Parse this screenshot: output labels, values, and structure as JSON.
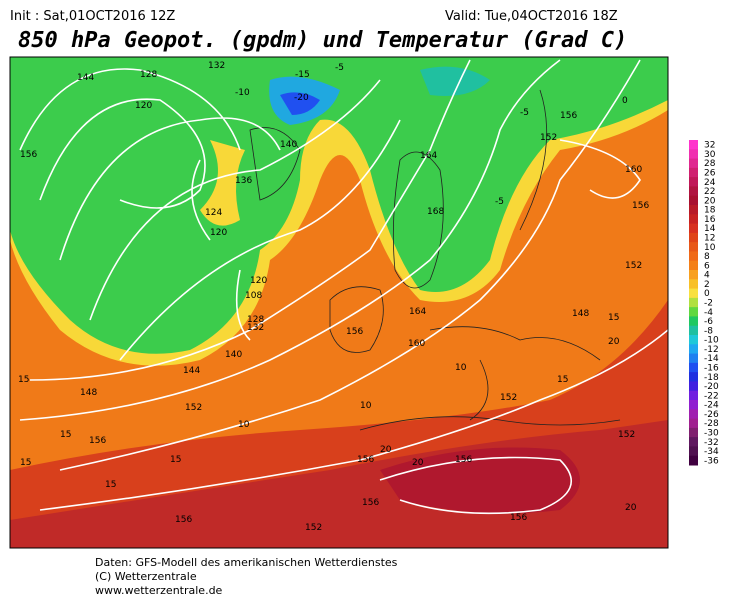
{
  "header": {
    "init": "Init : Sat,01OCT2016 12Z",
    "valid": "Valid: Tue,04OCT2016 18Z",
    "title": "850 hPa Geopot. (gpdm) und Temperatur (Grad C)"
  },
  "colorbar": {
    "labels": [
      32,
      30,
      28,
      26,
      24,
      22,
      20,
      18,
      16,
      14,
      12,
      10,
      8,
      6,
      4,
      2,
      0,
      -2,
      -4,
      -6,
      -8,
      -10,
      -12,
      -14,
      -16,
      -18,
      -20,
      -22,
      -24,
      -26,
      -28,
      -30,
      -32,
      -34,
      -36
    ],
    "colors": [
      "#ff33cc",
      "#f030b0",
      "#e02890",
      "#d02070",
      "#c01858",
      "#b01440",
      "#a81030",
      "#b81a28",
      "#c82222",
      "#d83020",
      "#e04418",
      "#e85818",
      "#f06a18",
      "#f48018",
      "#f8a020",
      "#f8c028",
      "#f8e040",
      "#b0e040",
      "#60d840",
      "#20c860",
      "#20c0a0",
      "#20c8d8",
      "#20a8f0",
      "#2080f0",
      "#2050f0",
      "#2030e0",
      "#4020e0",
      "#7020e0",
      "#9020d0",
      "#a020b0",
      "#a02090",
      "#802070",
      "#601860",
      "#501050",
      "#400040"
    ]
  },
  "map_labels": [
    "144",
    "128",
    "120",
    "132",
    "-10",
    "-15",
    "-20",
    "-5",
    "-5",
    "156",
    "152",
    "160",
    "156",
    "156",
    "140",
    "136",
    "124",
    "120",
    "164",
    "168",
    "-5",
    "0",
    "120",
    "108",
    "128",
    "132",
    "140",
    "144",
    "148",
    "152",
    "156",
    "164",
    "160",
    "148",
    "152",
    "20",
    "15",
    "152",
    "10",
    "10",
    "15",
    "156",
    "15",
    "15",
    "156",
    "156",
    "20",
    "20",
    "156",
    "156",
    "156",
    "152",
    "20",
    "152",
    "15",
    "15",
    "10",
    "15"
  ],
  "footer": [
    "Daten: GFS-Modell des amerikanischen Wetterdienstes",
    "(C) Wetterzentrale",
    "www.wetterzentrale.de"
  ]
}
